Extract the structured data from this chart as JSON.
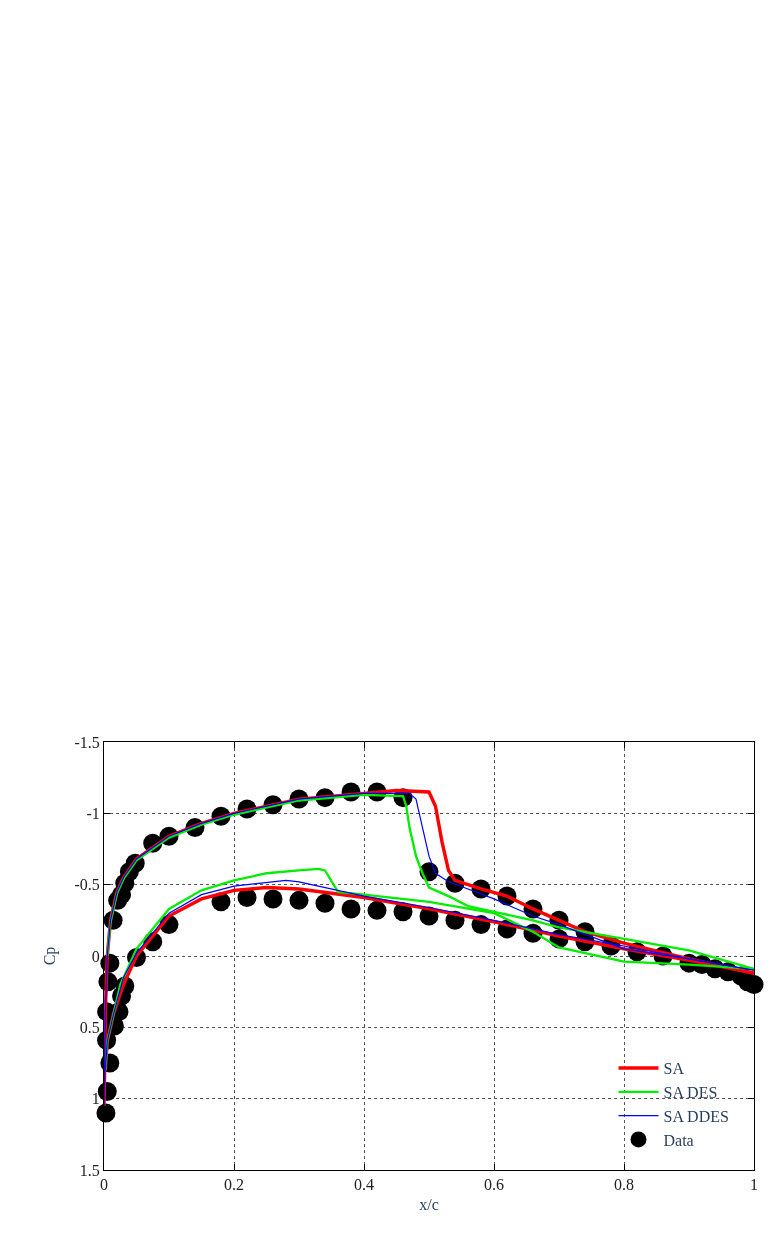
{
  "chart_data": {
    "type": "line",
    "xlabel": "x/c",
    "ylabel": "Cp",
    "xlim": [
      0,
      1
    ],
    "ylim": [
      1.5,
      -1.5
    ],
    "xticks": [
      0,
      0.2,
      0.4,
      0.6,
      0.8,
      1
    ],
    "yticks": [
      -1.5,
      -1,
      -0.5,
      0,
      0.5,
      1,
      1.5
    ],
    "grid": true,
    "legend": "bottom right",
    "series": [
      {
        "name": "SA",
        "color": "#ff0000",
        "line_style": "solid",
        "marker": "none",
        "x": [
          0.0,
          0.001,
          0.002,
          0.005,
          0.01,
          0.02,
          0.03,
          0.05,
          0.1,
          0.15,
          0.2,
          0.3,
          0.4,
          0.45,
          0.5,
          0.51,
          0.52,
          0.53,
          0.54,
          0.58,
          0.62,
          0.66,
          0.7,
          0.74,
          0.8,
          0.9,
          1.0
        ],
        "values": [
          1.05,
          0.8,
          0.4,
          0.0,
          -0.25,
          -0.45,
          -0.55,
          -0.68,
          -0.84,
          -0.93,
          -1.0,
          -1.1,
          -1.14,
          -1.16,
          -1.15,
          -1.05,
          -0.8,
          -0.6,
          -0.53,
          -0.47,
          -0.42,
          -0.33,
          -0.25,
          -0.17,
          -0.09,
          0.02,
          0.12
        ]
      },
      {
        "name": "SA DES",
        "color": "#00ee00",
        "line_style": "solid",
        "marker": "none",
        "x": [
          0.005,
          0.01,
          0.02,
          0.03,
          0.05,
          0.1,
          0.15,
          0.2,
          0.3,
          0.4,
          0.46,
          0.465,
          0.47,
          0.48,
          0.49,
          0.5,
          0.53,
          0.56,
          0.6,
          0.66,
          0.7,
          0.8,
          0.9,
          1.0
        ],
        "values": [
          0.0,
          -0.24,
          -0.44,
          -0.54,
          -0.67,
          -0.83,
          -0.92,
          -0.99,
          -1.09,
          -1.13,
          -1.12,
          -1.05,
          -0.9,
          -0.7,
          -0.58,
          -0.48,
          -0.42,
          -0.35,
          -0.31,
          -0.25,
          -0.2,
          -0.12,
          -0.04,
          0.09
        ]
      },
      {
        "name": "SA DDES",
        "color": "#0000ff",
        "line_style": "solid",
        "marker": "none",
        "x": [
          0.0,
          0.001,
          0.002,
          0.005,
          0.01,
          0.02,
          0.03,
          0.05,
          0.1,
          0.15,
          0.2,
          0.3,
          0.4,
          0.47,
          0.48,
          0.49,
          0.5,
          0.51,
          0.53,
          0.56,
          0.6,
          0.66,
          0.7,
          0.8,
          0.9,
          1.0
        ],
        "values": [
          1.05,
          0.8,
          0.4,
          0.0,
          -0.25,
          -0.45,
          -0.55,
          -0.68,
          -0.84,
          -0.93,
          -1.0,
          -1.1,
          -1.14,
          -1.14,
          -1.1,
          -0.9,
          -0.7,
          -0.58,
          -0.52,
          -0.47,
          -0.4,
          -0.28,
          -0.22,
          -0.05,
          0.02,
          0.1
        ]
      },
      {
        "color": "#ff0000",
        "line_style": "solid",
        "marker": "none",
        "x": [
          0.002,
          0.005,
          0.015,
          0.03,
          0.05,
          0.1,
          0.15,
          0.2,
          0.25,
          0.3,
          0.4,
          0.5,
          0.6,
          0.7,
          0.8,
          0.9,
          1.0
        ],
        "values": [
          0.8,
          0.6,
          0.4,
          0.2,
          0.0,
          -0.28,
          -0.4,
          -0.46,
          -0.48,
          -0.47,
          -0.41,
          -0.33,
          -0.24,
          -0.14,
          -0.05,
          0.03,
          0.12
        ]
      },
      {
        "color": "#00ee00",
        "line_style": "solid",
        "marker": "none",
        "x": [
          0.002,
          0.005,
          0.015,
          0.025,
          0.05,
          0.1,
          0.15,
          0.2,
          0.25,
          0.3,
          0.33,
          0.34,
          0.36,
          0.4,
          0.5,
          0.6,
          0.66,
          0.7,
          0.8,
          0.9,
          1.0
        ],
        "values": [
          0.8,
          0.6,
          0.4,
          0.2,
          -0.05,
          -0.33,
          -0.46,
          -0.53,
          -0.58,
          -0.6,
          -0.61,
          -0.6,
          -0.45,
          -0.43,
          -0.38,
          -0.3,
          -0.17,
          -0.06,
          0.04,
          0.06,
          0.09
        ]
      },
      {
        "color": "#0000ff",
        "line_style": "solid",
        "marker": "none",
        "x": [
          0.002,
          0.005,
          0.015,
          0.03,
          0.05,
          0.1,
          0.15,
          0.2,
          0.28,
          0.3,
          0.4,
          0.5,
          0.6,
          0.7,
          0.8,
          0.9,
          1.0
        ],
        "values": [
          0.8,
          0.6,
          0.4,
          0.15,
          -0.02,
          -0.3,
          -0.43,
          -0.49,
          -0.53,
          -0.52,
          -0.42,
          -0.34,
          -0.25,
          -0.15,
          -0.07,
          0.02,
          0.1
        ]
      },
      {
        "name": "Data",
        "type": "scatter",
        "color": "#000000",
        "marker": "circle",
        "x": [
          0.014,
          0.021,
          0.027,
          0.032,
          0.039,
          0.048,
          0.075,
          0.1,
          0.14,
          0.18,
          0.22,
          0.26,
          0.3,
          0.34,
          0.38,
          0.42,
          0.46,
          0.5,
          0.54,
          0.58,
          0.62,
          0.66,
          0.7,
          0.74,
          0.42,
          0.46,
          0.5,
          0.54,
          0.58,
          0.62,
          0.66,
          0.7,
          0.74,
          0.78,
          0.82,
          0.86,
          0.9,
          0.92,
          0.94,
          0.96,
          0.98,
          0.99,
          1.0,
          0.38,
          0.34,
          0.3,
          0.26,
          0.22,
          0.18,
          0.1,
          0.075,
          0.05,
          0.032,
          0.027,
          0.023,
          0.016,
          0.009,
          0.006,
          0.004,
          0.004,
          0.009,
          0.005,
          0.003
        ],
        "values": [
          -0.25,
          -0.39,
          -0.43,
          -0.51,
          -0.59,
          -0.65,
          -0.79,
          -0.84,
          -0.9,
          -0.98,
          -1.03,
          -1.06,
          -1.1,
          -1.11,
          -1.15,
          -1.15,
          -1.11,
          -0.59,
          -0.51,
          -0.47,
          -0.42,
          -0.33,
          -0.25,
          -0.17,
          -0.32,
          -0.31,
          -0.28,
          -0.25,
          -0.22,
          -0.19,
          -0.16,
          -0.12,
          -0.1,
          -0.07,
          -0.03,
          0.0,
          0.05,
          0.06,
          0.09,
          0.11,
          0.14,
          0.18,
          0.2,
          -0.33,
          -0.37,
          -0.39,
          -0.4,
          -0.41,
          -0.38,
          -0.22,
          -0.1,
          0.01,
          0.21,
          0.28,
          0.39,
          0.49,
          0.05,
          0.18,
          0.39,
          0.59,
          0.75,
          0.95,
          1.1
        ]
      }
    ]
  }
}
